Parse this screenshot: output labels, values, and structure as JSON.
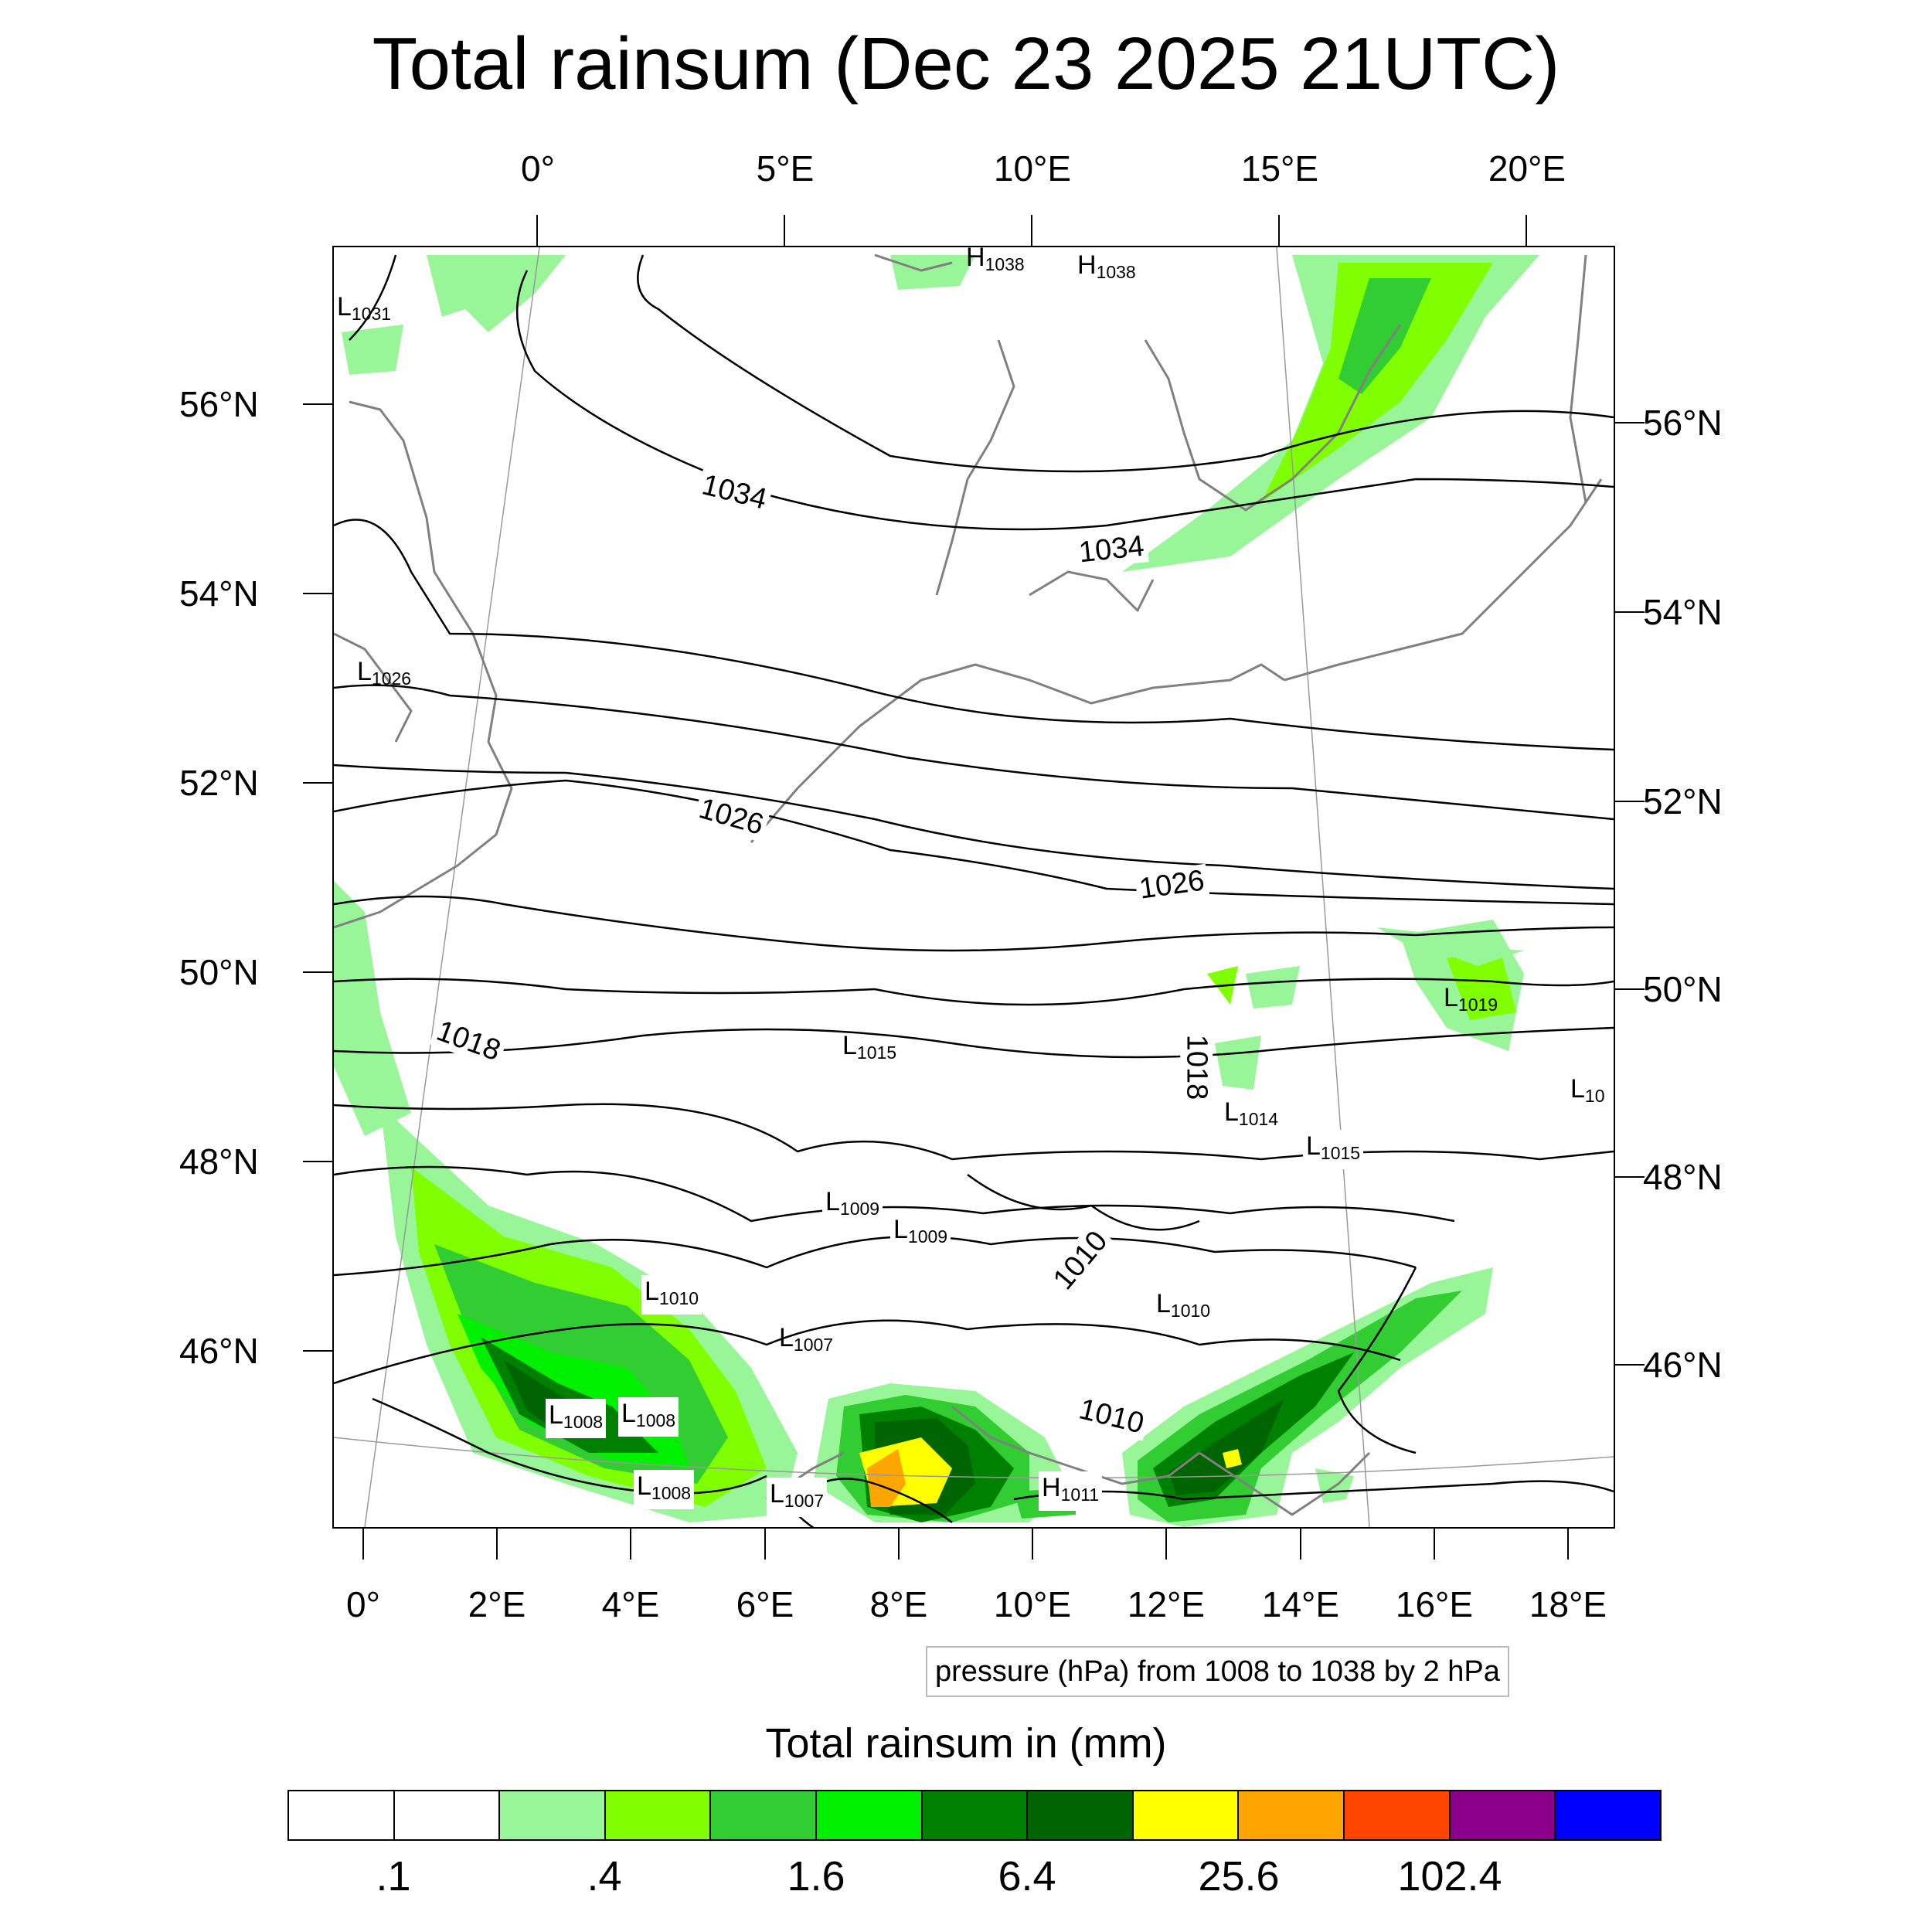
{
  "title": "Total rainsum (Dec 23 2025 21UTC)",
  "top_lon_ticks": [
    "0°",
    "5°E",
    "10°E",
    "15°E",
    "20°E"
  ],
  "bottom_lon_ticks": [
    "0°",
    "2°E",
    "4°E",
    "6°E",
    "8°E",
    "10°E",
    "12°E",
    "14°E",
    "16°E",
    "18°E"
  ],
  "left_lat_ticks": [
    "56°N",
    "54°N",
    "52°N",
    "50°N",
    "48°N",
    "46°N"
  ],
  "right_lat_ticks": [
    "56°N",
    "54°N",
    "52°N",
    "50°N",
    "48°N",
    "46°N"
  ],
  "pressure_centers": [
    {
      "type": "H",
      "value": "1038"
    },
    {
      "type": "H",
      "value": "1038"
    },
    {
      "type": "L",
      "value": "1031"
    },
    {
      "type": "L",
      "value": "1026"
    },
    {
      "type": "L",
      "value": "1019"
    },
    {
      "type": "L",
      "value": "1015"
    },
    {
      "type": "L",
      "value": "1014"
    },
    {
      "type": "L",
      "value": "1015"
    },
    {
      "type": "L",
      "value": "10"
    },
    {
      "type": "L",
      "value": "1009"
    },
    {
      "type": "L",
      "value": "1009"
    },
    {
      "type": "L",
      "value": "1010"
    },
    {
      "type": "L",
      "value": "1010"
    },
    {
      "type": "L",
      "value": "1007"
    },
    {
      "type": "L",
      "value": "1008"
    },
    {
      "type": "L",
      "value": "1008"
    },
    {
      "type": "L",
      "value": "1008"
    },
    {
      "type": "L",
      "value": "1007"
    },
    {
      "type": "H",
      "value": "1011"
    }
  ],
  "contour_labels": [
    "1034",
    "1034",
    "1026",
    "1026",
    "1018",
    "1018",
    "1010",
    "1010"
  ],
  "contour_note": "pressure (hPa) from 1008 to 1038 by 2 hPa",
  "colorbar": {
    "title": "Total rainsum in (mm)",
    "colors": [
      "#ffffff",
      "#ffffff",
      "#98f598",
      "#80ff00",
      "#32cd32",
      "#00f000",
      "#008000",
      "#006400",
      "#ffff00",
      "#ffa500",
      "#ff4500",
      "#8b008b",
      "#0000ff"
    ],
    "labels": [
      ".1",
      ".4",
      "1.6",
      "6.4",
      "25.6",
      "102.4"
    ]
  }
}
